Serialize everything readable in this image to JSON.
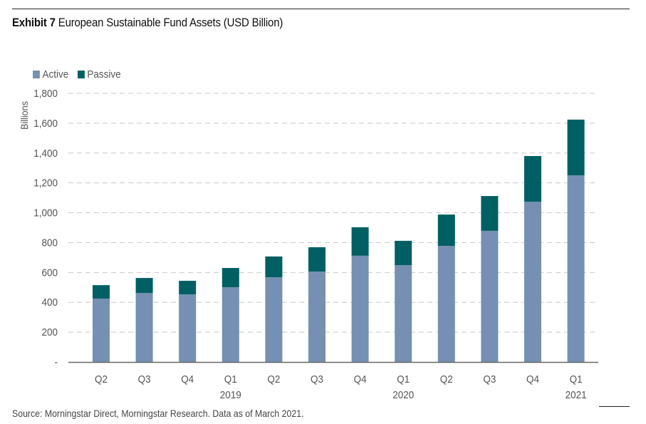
{
  "title": {
    "bold": "Exhibit 7",
    "text": "European Sustainable Fund Assets (USD Billion)"
  },
  "source": "Source: Morningstar Direct, Morningstar Research. Data as of March 2021.",
  "colors": {
    "active": "#7590b2",
    "passive": "#005f63",
    "grid": "#c8c8c8",
    "axis": "#555555"
  },
  "chart_data": {
    "type": "bar",
    "stacked": true,
    "title": "European Sustainable Fund Assets (USD Billion)",
    "xlabel": "",
    "ylabel": "Billions",
    "ylim": [
      0,
      1800
    ],
    "yticks": [
      0,
      200,
      400,
      600,
      800,
      1000,
      1200,
      1400,
      1600,
      1800
    ],
    "ytick_labels": [
      "-",
      "200",
      "400",
      "600",
      "800",
      "1,000",
      "1,200",
      "1,400",
      "1,600",
      "1,800"
    ],
    "grid": true,
    "legend_position": "top-left",
    "categories": [
      "Q2",
      "Q3",
      "Q4",
      "Q1",
      "Q2",
      "Q3",
      "Q4",
      "Q1",
      "Q2",
      "Q3",
      "Q4",
      "Q1"
    ],
    "year_labels": [
      "",
      "",
      "",
      "2019",
      "",
      "",
      "",
      "2020",
      "",
      "",
      "",
      "2021"
    ],
    "series": [
      {
        "name": "Active",
        "values": [
          425,
          462,
          453,
          501,
          568,
          606,
          712,
          649,
          778,
          879,
          1074,
          1251
        ]
      },
      {
        "name": "Passive",
        "values": [
          90,
          101,
          91,
          129,
          139,
          163,
          191,
          163,
          210,
          233,
          306,
          373
        ]
      }
    ]
  }
}
